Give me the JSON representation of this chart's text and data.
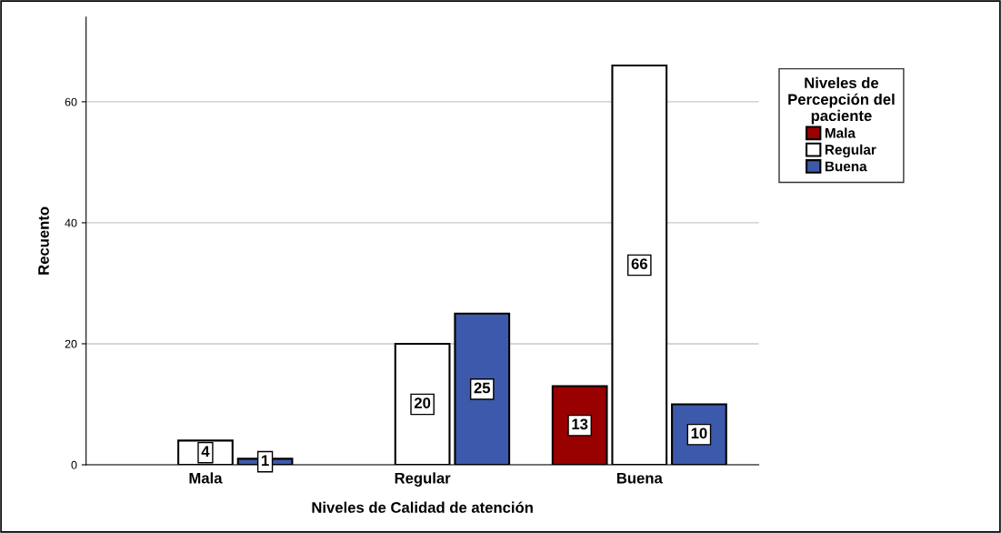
{
  "chart_data": {
    "type": "bar",
    "xlabel": "Niveles de Calidad de atención",
    "ylabel": "Recuento",
    "legend_title": "Niveles de\nPercepción del\npaciente",
    "categories": [
      "Mala",
      "Regular",
      "Buena"
    ],
    "series": [
      {
        "name": "Mala",
        "color": "#990000",
        "values": [
          null,
          null,
          13
        ]
      },
      {
        "name": "Regular",
        "color": "#ffffff",
        "values": [
          4,
          20,
          66
        ]
      },
      {
        "name": "Buena",
        "color": "#3d59ab",
        "values": [
          1,
          25,
          10
        ]
      }
    ],
    "ylim": [
      0,
      74
    ],
    "yticks": [
      0,
      20,
      40,
      60
    ],
    "grid": "y",
    "legend": "right",
    "data_labels": true
  }
}
